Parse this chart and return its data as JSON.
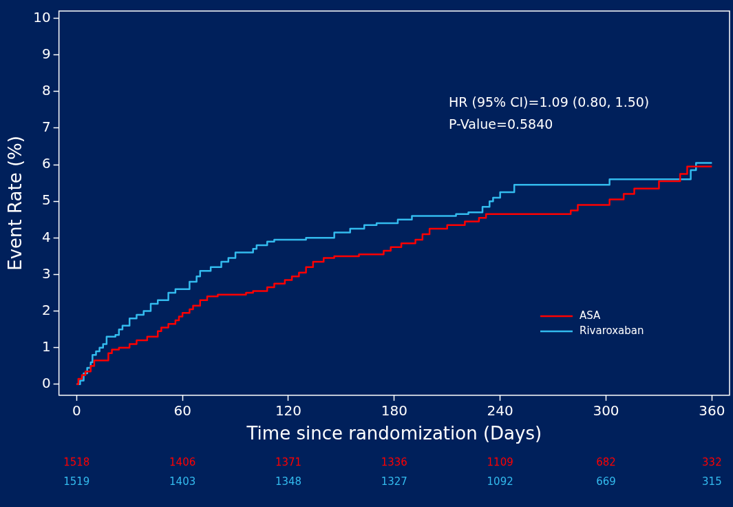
{
  "chart_data": {
    "type": "step",
    "xlabel": "Time since randomization (Days)",
    "ylabel": "Event Rate (%)",
    "xlim": [
      -10,
      370
    ],
    "ylim": [
      -0.3,
      10.2
    ],
    "xticks": [
      0,
      60,
      120,
      180,
      240,
      300,
      360
    ],
    "yticks": [
      0,
      1,
      2,
      3,
      4,
      5,
      6,
      7,
      8,
      9,
      10
    ],
    "grid": false,
    "legend": "right",
    "marker": "none",
    "line_style": "solid",
    "series": [
      {
        "name": "ASA",
        "color": "#ff0000",
        "x": [
          0,
          1,
          3,
          5,
          8,
          10,
          18,
          20,
          24,
          30,
          34,
          40,
          46,
          48,
          52,
          56,
          58,
          60,
          64,
          66,
          70,
          74,
          80,
          96,
          100,
          108,
          112,
          118,
          122,
          126,
          130,
          134,
          140,
          146,
          160,
          174,
          178,
          184,
          192,
          196,
          200,
          210,
          220,
          228,
          232,
          280,
          284,
          302,
          310,
          316,
          330,
          342,
          346,
          360
        ],
        "values": [
          0,
          0.15,
          0.25,
          0.35,
          0.5,
          0.65,
          0.85,
          0.95,
          1.0,
          1.1,
          1.2,
          1.3,
          1.45,
          1.55,
          1.65,
          1.75,
          1.85,
          1.95,
          2.05,
          2.15,
          2.3,
          2.4,
          2.45,
          2.5,
          2.55,
          2.65,
          2.75,
          2.85,
          2.95,
          3.05,
          3.2,
          3.35,
          3.45,
          3.5,
          3.55,
          3.65,
          3.75,
          3.85,
          3.95,
          4.1,
          4.25,
          4.35,
          4.45,
          4.55,
          4.65,
          4.75,
          4.9,
          5.05,
          5.2,
          5.35,
          5.55,
          5.75,
          5.95,
          5.95
        ]
      },
      {
        "name": "Rivaroxaban",
        "color": "#33bbee",
        "x": [
          0,
          2,
          4,
          6,
          8,
          9,
          11,
          13,
          15,
          17,
          22,
          24,
          26,
          30,
          34,
          38,
          42,
          46,
          52,
          56,
          64,
          68,
          70,
          76,
          82,
          86,
          90,
          100,
          102,
          108,
          112,
          130,
          146,
          155,
          163,
          170,
          182,
          190,
          215,
          222,
          230,
          234,
          236,
          240,
          248,
          302,
          348,
          351,
          360
        ],
        "values": [
          0,
          0.1,
          0.3,
          0.45,
          0.6,
          0.8,
          0.9,
          1.0,
          1.1,
          1.3,
          1.35,
          1.5,
          1.6,
          1.8,
          1.9,
          2.0,
          2.2,
          2.3,
          2.5,
          2.6,
          2.8,
          2.95,
          3.1,
          3.2,
          3.35,
          3.45,
          3.6,
          3.7,
          3.8,
          3.9,
          3.95,
          4.0,
          4.15,
          4.25,
          4.35,
          4.4,
          4.5,
          4.6,
          4.65,
          4.7,
          4.85,
          5.0,
          5.1,
          5.25,
          5.45,
          5.6,
          5.85,
          6.05,
          6.05
        ]
      }
    ],
    "annotations": [
      "HR (95% CI)=1.09 (0.80, 1.50)",
      "P-Value=0.5840",
      "1518",
      "1406",
      "1371",
      "1336",
      "1109",
      "682",
      "332",
      "1519",
      "1403",
      "1348",
      "1327",
      "1092",
      "669",
      "315"
    ]
  }
}
